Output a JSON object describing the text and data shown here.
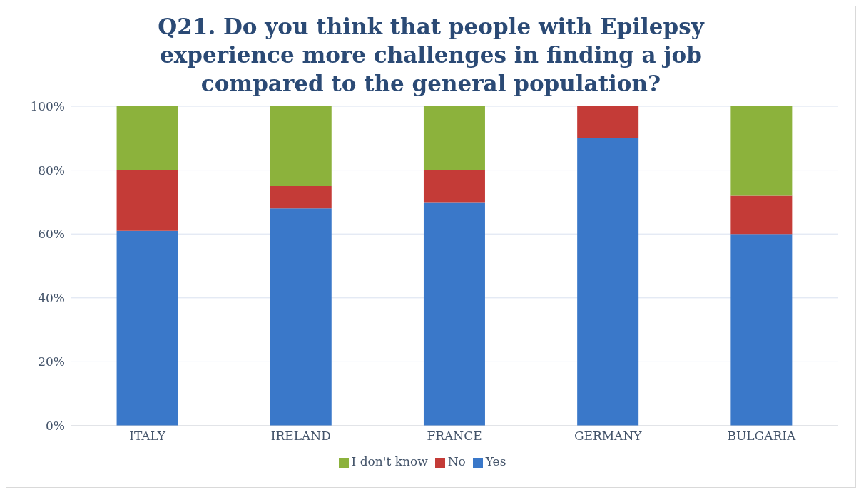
{
  "chart_data": {
    "type": "bar",
    "title": "Q21. Do you think that people with Epilepsy experience more challenges in finding a job compared to the general population?",
    "categories": [
      "ITALY",
      "IRELAND",
      "FRANCE",
      "GERMANY",
      "BULGARIA"
    ],
    "stacked": true,
    "series": [
      {
        "name": "Yes",
        "color": "#3a78c9",
        "values": [
          61,
          68,
          70,
          90,
          60
        ]
      },
      {
        "name": "No",
        "color": "#c43b37",
        "values": [
          19,
          7,
          10,
          10,
          12
        ]
      },
      {
        "name": "I don't know",
        "color": "#8cb23c",
        "values": [
          20,
          25,
          20,
          0,
          28
        ]
      }
    ],
    "ylim": [
      0,
      100
    ],
    "yticks": [
      {
        "value": 0,
        "label": "0%"
      },
      {
        "value": 20,
        "label": "20%"
      },
      {
        "value": 40,
        "label": "40%"
      },
      {
        "value": 60,
        "label": "60%"
      },
      {
        "value": 80,
        "label": "80%"
      },
      {
        "value": 100,
        "label": "100%"
      }
    ],
    "grid": "y",
    "legend": "bottom"
  }
}
